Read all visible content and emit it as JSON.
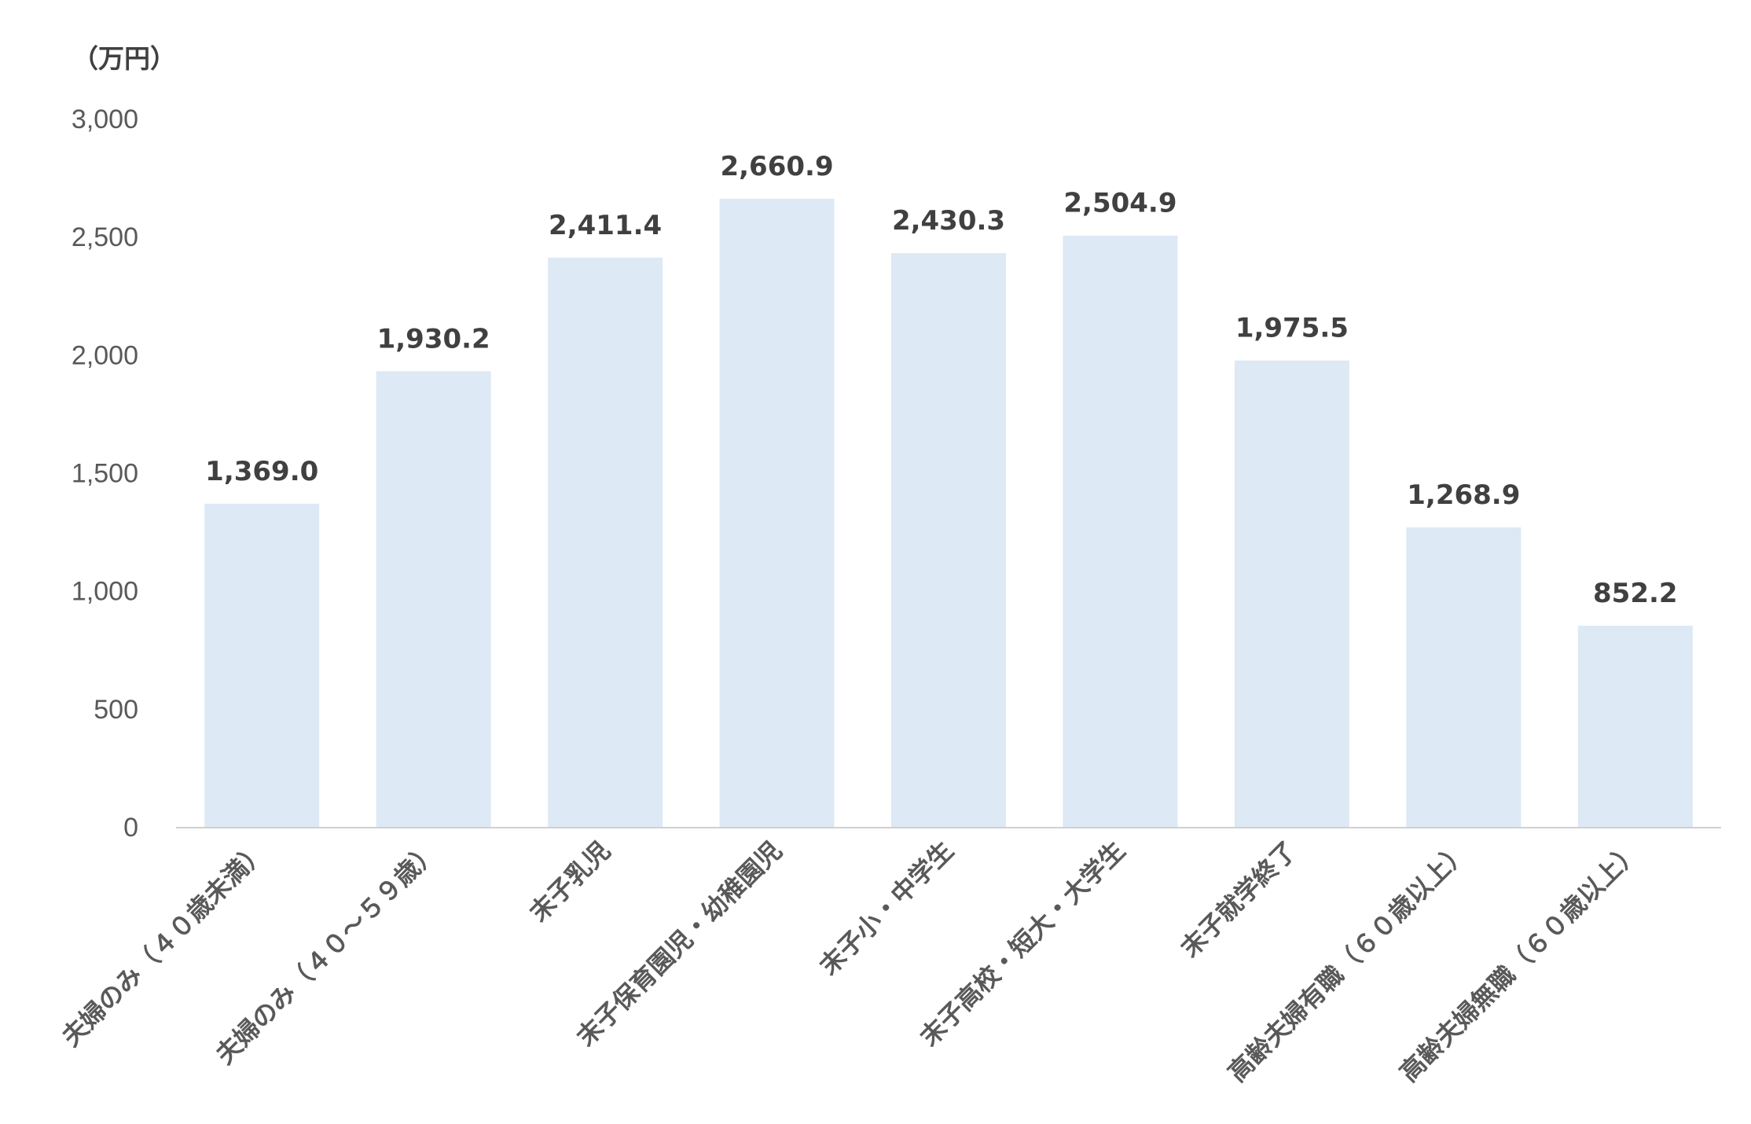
{
  "chart_data": {
    "type": "bar",
    "unit_label": "（万円）",
    "categories": [
      "夫婦のみ（４０歳未満）",
      "夫婦のみ（４０～５９歳）",
      "末子乳児",
      "末子保育園児・幼稚園児",
      "末子小・中学生",
      "末子高校・短大・大学生",
      "末子就学終了",
      "高齢夫婦有職（６０歳以上）",
      "高齢夫婦無職（６０歳以上）"
    ],
    "values": [
      1369.0,
      1930.2,
      2411.4,
      2660.9,
      2430.3,
      2504.9,
      1975.5,
      1268.9,
      852.2
    ],
    "value_labels": [
      "1,369.0",
      "1,930.2",
      "2,411.4",
      "2,660.9",
      "2,430.3",
      "2,504.9",
      "1,975.5",
      "1,268.9",
      "852.2"
    ],
    "y_ticks": [
      0,
      500,
      1000,
      1500,
      2000,
      2500,
      3000
    ],
    "y_tick_labels": [
      "0",
      "500",
      "1,000",
      "1,500",
      "2,000",
      "2,500",
      "3,000"
    ],
    "ylim": [
      0,
      3000
    ],
    "grid": false,
    "legend": "none",
    "bar_color": "#dde9f5",
    "axis_color": "#d0d0d0"
  }
}
